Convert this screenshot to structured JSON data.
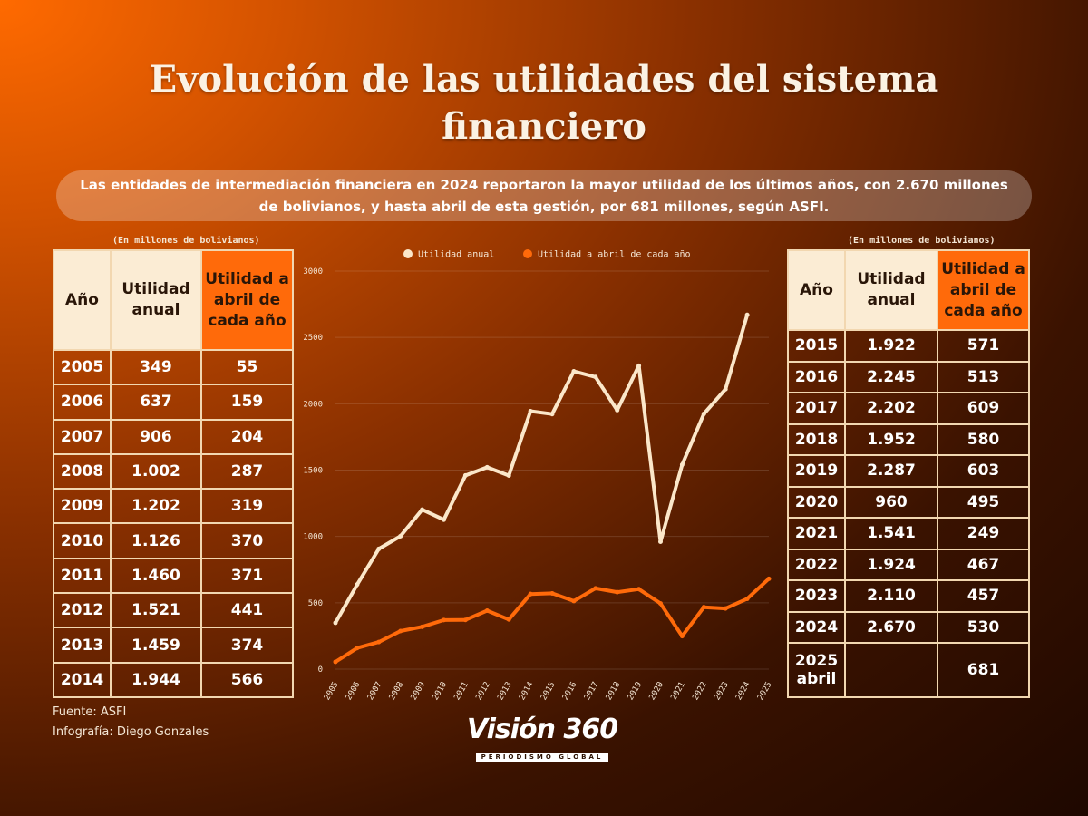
{
  "title": "Evolución de las utilidades del sistema financiero",
  "subtitle": "Las entidades de intermediación financiera en 2024 reportaron la mayor utilidad de los últimos años, con 2.670 millones de bolivianos, y hasta abril de esta gestión, por 681 millones, según ASFI.",
  "unit_note": "(En millones de bolivianos)",
  "table_headers": {
    "year": "Año",
    "annual": "Utilidad anual",
    "april": "Utilidad a abril de cada año"
  },
  "left_table": [
    {
      "year": "2005",
      "annual": "349",
      "april": "55"
    },
    {
      "year": "2006",
      "annual": "637",
      "april": "159"
    },
    {
      "year": "2007",
      "annual": "906",
      "april": "204"
    },
    {
      "year": "2008",
      "annual": "1.002",
      "april": "287"
    },
    {
      "year": "2009",
      "annual": "1.202",
      "april": "319"
    },
    {
      "year": "2010",
      "annual": "1.126",
      "april": "370"
    },
    {
      "year": "2011",
      "annual": "1.460",
      "april": "371"
    },
    {
      "year": "2012",
      "annual": "1.521",
      "april": "441"
    },
    {
      "year": "2013",
      "annual": "1.459",
      "april": "374"
    },
    {
      "year": "2014",
      "annual": "1.944",
      "april": "566"
    }
  ],
  "right_table": [
    {
      "year": "2015",
      "annual": "1.922",
      "april": "571"
    },
    {
      "year": "2016",
      "annual": "2.245",
      "april": "513"
    },
    {
      "year": "2017",
      "annual": "2.202",
      "april": "609"
    },
    {
      "year": "2018",
      "annual": "1.952",
      "april": "580"
    },
    {
      "year": "2019",
      "annual": "2.287",
      "april": "603"
    },
    {
      "year": "2020",
      "annual": "960",
      "april": "495"
    },
    {
      "year": "2021",
      "annual": "1.541",
      "april": "249"
    },
    {
      "year": "2022",
      "annual": "1.924",
      "april": "467"
    },
    {
      "year": "2023",
      "annual": "2.110",
      "april": "457"
    },
    {
      "year": "2024",
      "annual": "2.670",
      "april": "530"
    },
    {
      "year": "2025 abril",
      "annual": "",
      "april": "681"
    }
  ],
  "source": "Fuente: ASFI",
  "credit": "Infografía: Diego Gonzales",
  "logo": {
    "name": "Visión 360",
    "tagline": "PERIODISMO GLOBAL"
  },
  "colors": {
    "annual": "#fbe7c9",
    "april": "#ff6a0a"
  },
  "chart_data": {
    "type": "line",
    "x": [
      "2005",
      "2006",
      "2007",
      "2008",
      "2009",
      "2010",
      "2011",
      "2012",
      "2013",
      "2014",
      "2015",
      "2016",
      "2017",
      "2018",
      "2019",
      "2020",
      "2021",
      "2022",
      "2023",
      "2024",
      "2025"
    ],
    "series": [
      {
        "name": "Utilidad anual",
        "values": [
          349,
          637,
          906,
          1002,
          1202,
          1126,
          1460,
          1521,
          1459,
          1944,
          1922,
          2245,
          2202,
          1952,
          2287,
          960,
          1541,
          1924,
          2110,
          2670,
          null
        ]
      },
      {
        "name": "Utilidad a abril de cada año",
        "values": [
          55,
          159,
          204,
          287,
          319,
          370,
          371,
          441,
          374,
          566,
          571,
          513,
          609,
          580,
          603,
          495,
          249,
          467,
          457,
          530,
          681
        ]
      }
    ],
    "yticks": [
      0,
      500,
      1000,
      1500,
      2000,
      2500,
      3000
    ],
    "ylim": [
      0,
      3000
    ],
    "grid": true,
    "legend": "top"
  }
}
